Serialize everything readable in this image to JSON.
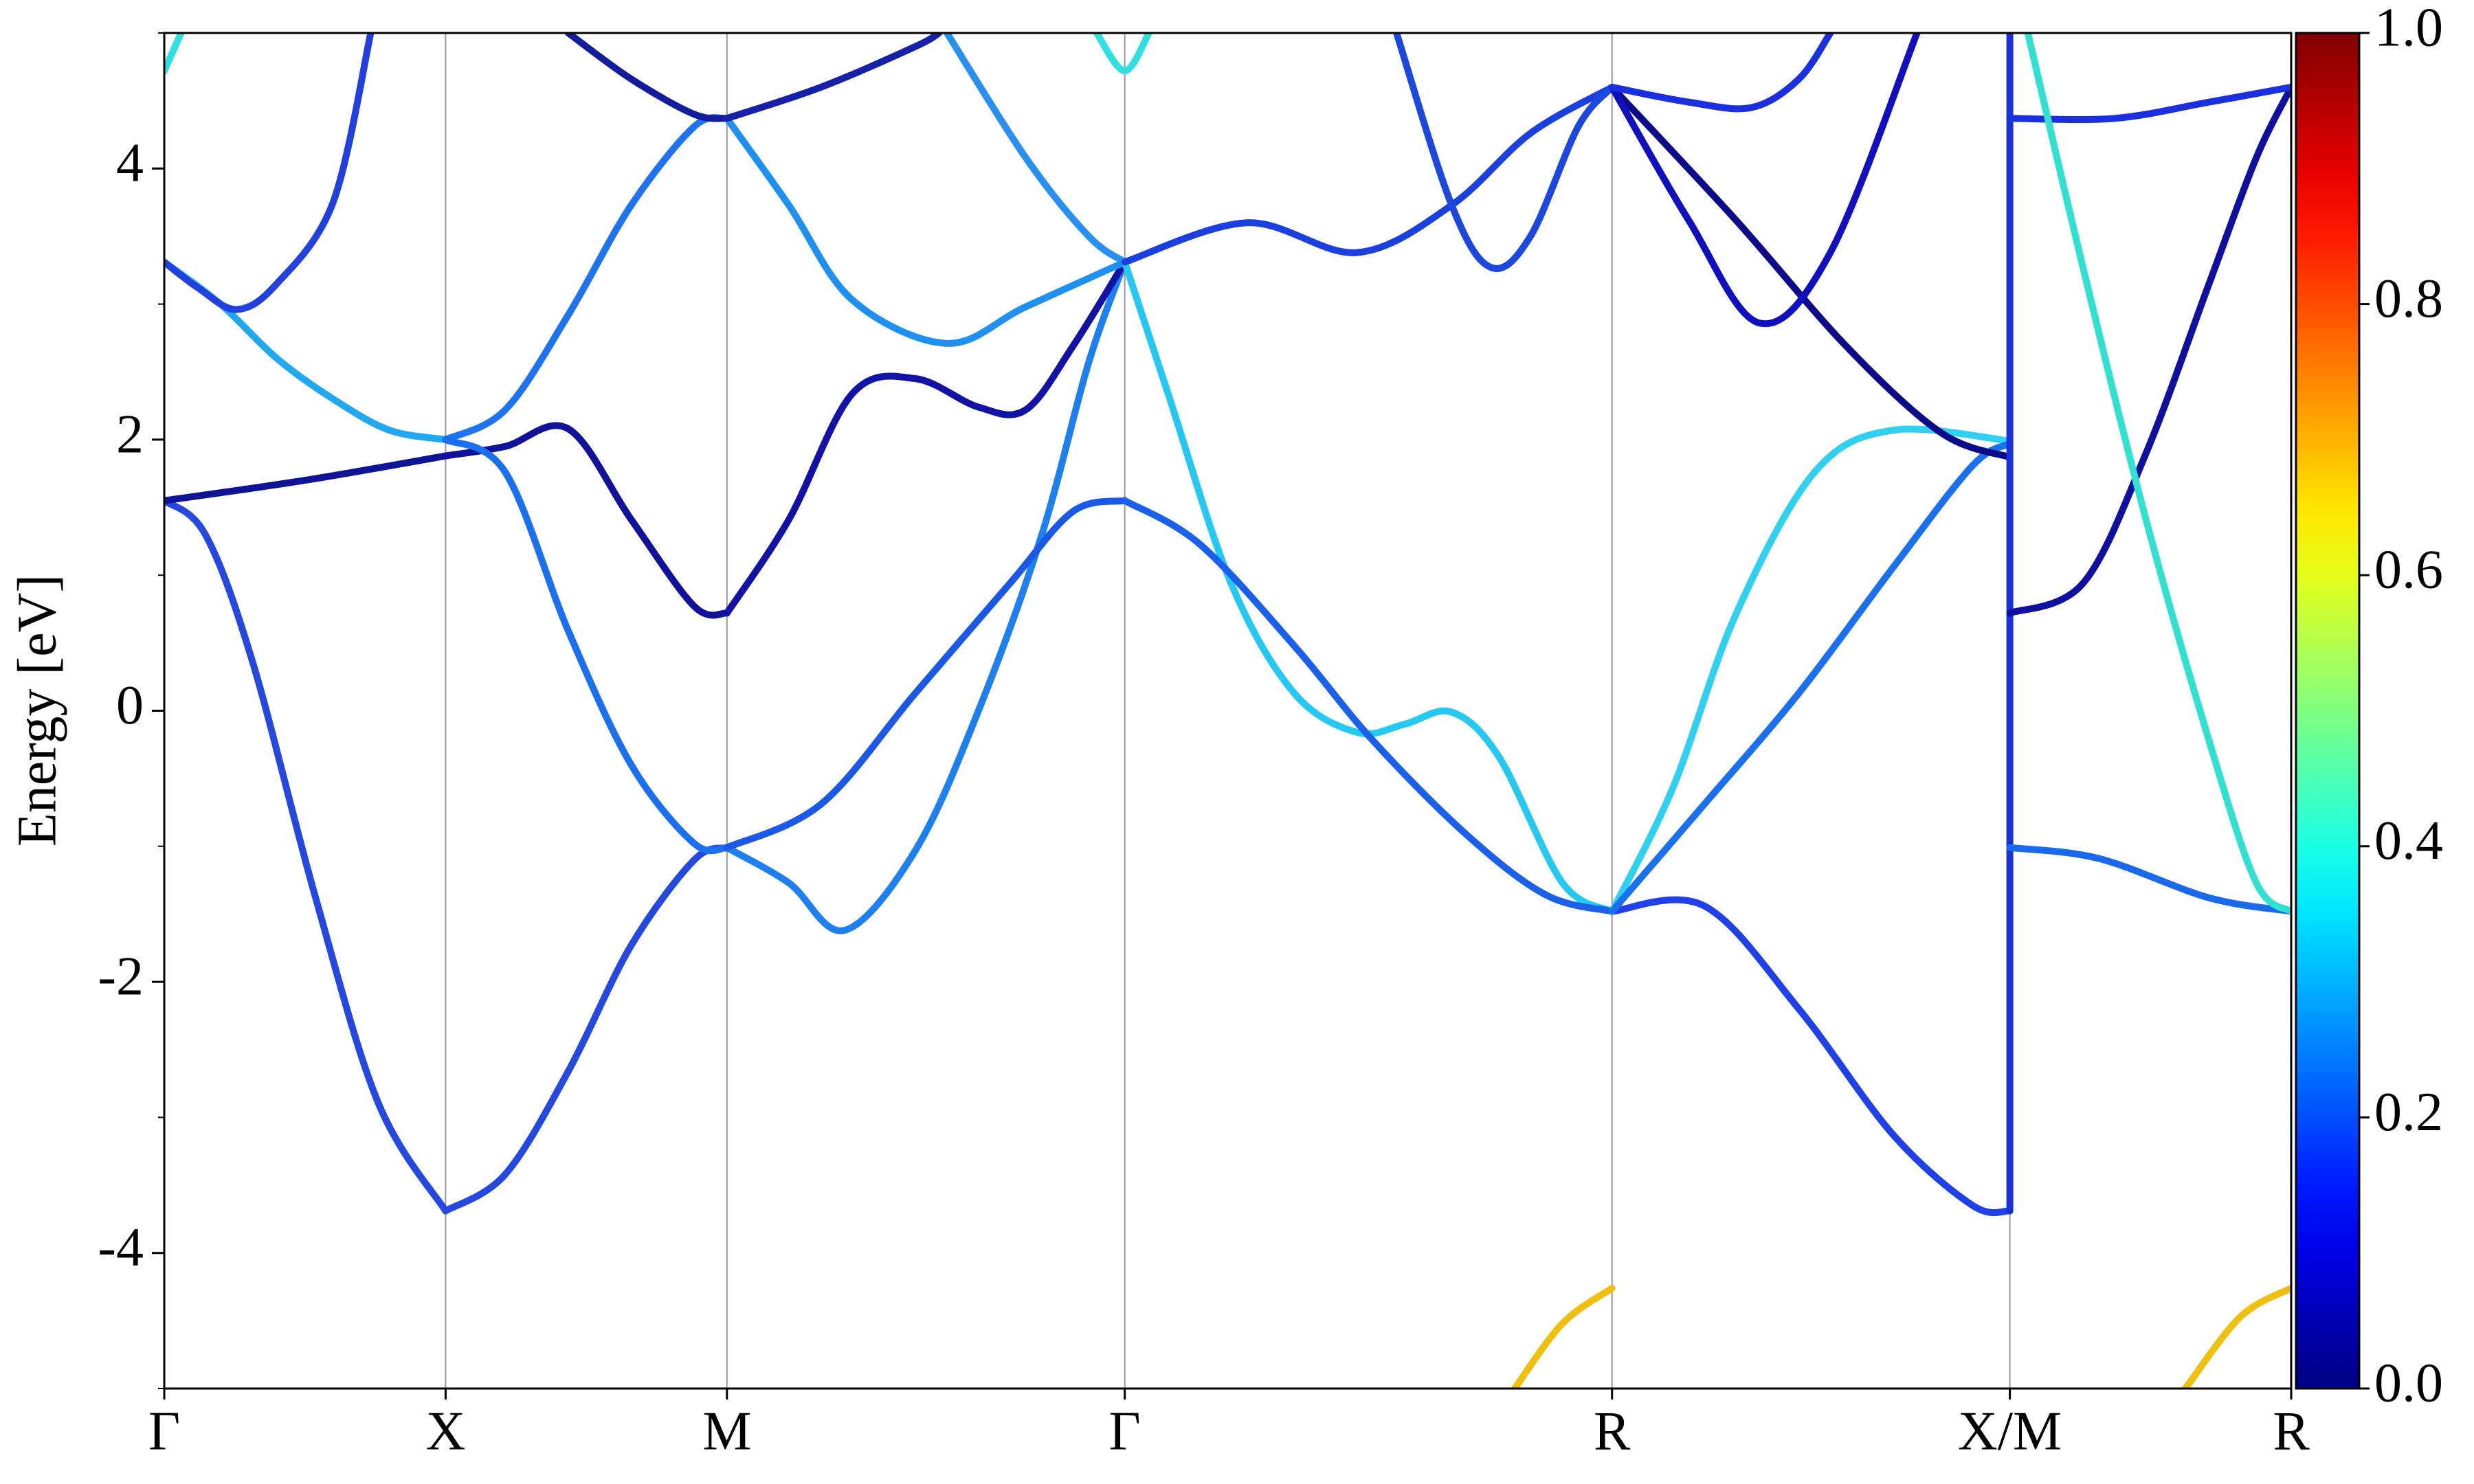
{
  "chart_data": {
    "type": "line",
    "ylabel": "Energy [eV]",
    "xlim": [
      0,
      3.78
    ],
    "xticks": [
      {
        "value": 0,
        "label": "Γ"
      },
      {
        "value": 0.5,
        "label": "X"
      },
      {
        "value": 1.0,
        "label": "M"
      },
      {
        "value": 1.707,
        "label": "Γ"
      },
      {
        "value": 2.573,
        "label": "R"
      },
      {
        "value": 3.28,
        "label": "X/M"
      },
      {
        "value": 3.78,
        "label": "R"
      }
    ],
    "xgrid": true,
    "ylim": [
      -5,
      5
    ],
    "yticks": [
      -4,
      -2,
      0,
      2,
      4
    ],
    "yminorticks": [
      -5,
      -3,
      -1,
      1,
      3,
      5
    ],
    "colorbar": {
      "colormap": "jet",
      "lim": [
        0,
        1
      ],
      "ticks": [
        {
          "value": 0,
          "label": "0.0"
        },
        {
          "value": 0.2,
          "label": "0.2"
        },
        {
          "value": 0.4,
          "label": "0.4"
        },
        {
          "value": 0.6,
          "label": "0.6"
        },
        {
          "value": 0.8,
          "label": "0.8"
        },
        {
          "value": 1,
          "label": "1.0"
        }
      ]
    },
    "series": [
      {
        "color": "#2448e0",
        "x": [
          0,
          0.073,
          0.157,
          0.269,
          0.381,
          0.5
        ],
        "values": [
          1.55,
          1.3,
          0.36,
          -1.38,
          -2.9,
          -3.69
        ]
      },
      {
        "color": "#0f1496",
        "x": [
          0,
          0.25,
          0.5
        ],
        "values": [
          1.55,
          1.7,
          1.88
        ]
      },
      {
        "color": "#20a8f0",
        "x": [
          0,
          0.1,
          0.2,
          0.3,
          0.4,
          0.5
        ],
        "values": [
          3.31,
          3.0,
          2.6,
          2.3,
          2.07,
          2.0
        ]
      },
      {
        "color": "#2040e0",
        "x": [
          0,
          0.06,
          0.129,
          0.2,
          0.3,
          0.367
        ],
        "values": [
          3.31,
          3.12,
          2.96,
          3.15,
          3.75,
          5.0
        ]
      },
      {
        "color": "#30e0e0",
        "x": [
          0,
          0.03
        ],
        "values": [
          4.72,
          5.0
        ]
      },
      {
        "color": "#2448e0",
        "x": [
          0.5,
          0.606,
          0.718,
          0.83,
          0.942,
          1.0
        ],
        "values": [
          -3.69,
          -3.42,
          -2.66,
          -1.73,
          -1.1,
          -1.01
        ]
      },
      {
        "color": "#1e74f0",
        "x": [
          0.5,
          0.606,
          0.718,
          0.83,
          0.942,
          1.0
        ],
        "values": [
          2.0,
          2.22,
          2.92,
          3.73,
          4.31,
          4.37
        ]
      },
      {
        "color": "#10129a",
        "x": [
          0.5,
          0.606,
          0.718,
          0.83,
          0.942,
          1.0
        ],
        "values": [
          1.88,
          1.95,
          2.08,
          1.41,
          0.77,
          0.72
        ]
      },
      {
        "color": "#1a70ef",
        "x": [
          0.5,
          0.606,
          0.718,
          0.83,
          0.942,
          1.0
        ],
        "values": [
          2.0,
          1.76,
          0.59,
          -0.4,
          -0.98,
          -1.01
        ]
      },
      {
        "color": "#141c9e",
        "x": [
          0.718,
          0.83,
          0.942,
          1.0
        ],
        "values": [
          5.0,
          4.66,
          4.4,
          4.37
        ]
      },
      {
        "color": "#1e80f0",
        "x": [
          1.0,
          1.11,
          1.209,
          1.335,
          1.447,
          1.559,
          1.643,
          1.707
        ],
        "values": [
          -1.01,
          -1.27,
          -1.62,
          -1.03,
          0,
          1.29,
          2.57,
          3.31
        ]
      },
      {
        "color": "#1a58e8",
        "x": [
          1.0,
          1.167,
          1.335,
          1.503,
          1.615,
          1.707
        ],
        "values": [
          -1.01,
          -0.69,
          0.13,
          0.94,
          1.47,
          1.55
        ]
      },
      {
        "color": "#1212a6",
        "x": [
          1.0,
          1.11,
          1.223,
          1.335,
          1.447,
          1.531,
          1.615,
          1.707
        ],
        "values": [
          0.72,
          1.41,
          2.34,
          2.45,
          2.24,
          2.22,
          2.69,
          3.31
        ]
      },
      {
        "color": "#1e90f0",
        "x": [
          1.0,
          1.11,
          1.223,
          1.391,
          1.531,
          1.707
        ],
        "values": [
          4.37,
          3.73,
          3.03,
          2.71,
          2.98,
          3.31
        ]
      },
      {
        "color": "#1620a8",
        "x": [
          1.0,
          1.167,
          1.335,
          1.377
        ],
        "values": [
          4.37,
          4.6,
          4.9,
          5.0
        ]
      },
      {
        "color": "#2a90f0",
        "x": [
          1.391,
          1.531,
          1.643,
          1.707
        ],
        "values": [
          5.0,
          4.08,
          3.5,
          3.31
        ]
      },
      {
        "color": "#30e0e0",
        "x": [
          1.657,
          1.707,
          1.75
        ],
        "values": [
          5.0,
          4.72,
          5.0
        ]
      },
      {
        "color": "#24c8f0",
        "x": [
          1.707,
          1.784,
          1.896,
          2.008,
          2.12,
          2.204,
          2.288,
          2.372,
          2.485,
          2.573
        ],
        "values": [
          3.31,
          2.34,
          0.94,
          0.13,
          -0.16,
          -0.1,
          -0.01,
          -0.34,
          -1.27,
          -1.48
        ]
      },
      {
        "color": "#1a60ea",
        "x": [
          1.707,
          1.84,
          2.008,
          2.148,
          2.316,
          2.456,
          2.573
        ],
        "values": [
          1.55,
          1.23,
          0.48,
          -0.22,
          -0.92,
          -1.36,
          -1.48
        ]
      },
      {
        "color": "#1a40e0",
        "x": [
          1.707,
          1.924,
          2.12,
          2.288,
          2.428,
          2.573
        ],
        "values": [
          3.31,
          3.6,
          3.38,
          3.73,
          4.26,
          4.6
        ]
      },
      {
        "color": "#1c48e0",
        "x": [
          2.19,
          2.288,
          2.358,
          2.428,
          2.513,
          2.573
        ],
        "values": [
          5.0,
          3.73,
          3.27,
          3.5,
          4.31,
          4.6
        ]
      },
      {
        "color": "#f0c010",
        "x": [
          2.4,
          2.485,
          2.573
        ],
        "values": [
          -5.0,
          -4.52,
          -4.26
        ]
      },
      {
        "color": "#2040e8",
        "x": [
          2.573,
          2.737,
          2.905,
          3.073,
          3.214,
          3.28
        ],
        "values": [
          -1.48,
          -1.44,
          -2.2,
          -3.13,
          -3.65,
          -3.69
        ]
      },
      {
        "color": "#30d0f0",
        "x": [
          2.573,
          2.681,
          2.793,
          2.933,
          3.073,
          3.28
        ],
        "values": [
          -1.48,
          -0.57,
          0.71,
          1.76,
          2.07,
          1.99
        ]
      },
      {
        "color": "#1a70ef",
        "x": [
          2.573,
          2.737,
          2.905,
          3.073,
          3.214,
          3.28
        ],
        "values": [
          -1.48,
          -0.69,
          0.13,
          1.06,
          1.81,
          1.97
        ]
      },
      {
        "color": "#0c0c8a",
        "x": [
          2.573,
          2.793,
          2.989,
          3.158,
          3.28
        ],
        "values": [
          4.6,
          3.62,
          2.69,
          2.05,
          1.87
        ]
      },
      {
        "color": "#1010c0",
        "x": [
          2.573,
          2.709,
          2.835,
          2.961,
          3.115
        ],
        "values": [
          4.6,
          3.62,
          2.86,
          3.38,
          5.0
        ]
      },
      {
        "color": "#1a30e0",
        "x": [
          2.573,
          2.709,
          2.821,
          2.905,
          2.961
        ],
        "values": [
          4.6,
          4.49,
          4.45,
          4.66,
          5.0
        ]
      },
      {
        "color": "#1a30d8",
        "x": [
          3.28,
          3.28
        ],
        "values": [
          -3.69,
          5.0
        ]
      },
      {
        "color": "#1010a0",
        "x": [
          3.28,
          3.41,
          3.522,
          3.634,
          3.718,
          3.78
        ],
        "values": [
          0.72,
          0.94,
          1.9,
          3.15,
          4.08,
          4.6
        ]
      },
      {
        "color": "#1a30e0",
        "x": [
          3.28,
          3.466,
          3.634,
          3.78
        ],
        "values": [
          4.37,
          4.37,
          4.49,
          4.6
        ]
      },
      {
        "color": "#1a68ec",
        "x": [
          3.28,
          3.438,
          3.634,
          3.78
        ],
        "values": [
          -1.01,
          -1.09,
          -1.38,
          -1.48
        ]
      },
      {
        "color": "#30e0d0",
        "x": [
          3.312,
          3.41,
          3.522,
          3.634,
          3.718,
          3.78
        ],
        "values": [
          5.0,
          3.27,
          1.41,
          -0.22,
          -1.27,
          -1.48
        ]
      },
      {
        "color": "#f0c010",
        "x": [
          3.592,
          3.69,
          3.78
        ],
        "values": [
          -5.0,
          -4.47,
          -4.26
        ]
      }
    ]
  }
}
